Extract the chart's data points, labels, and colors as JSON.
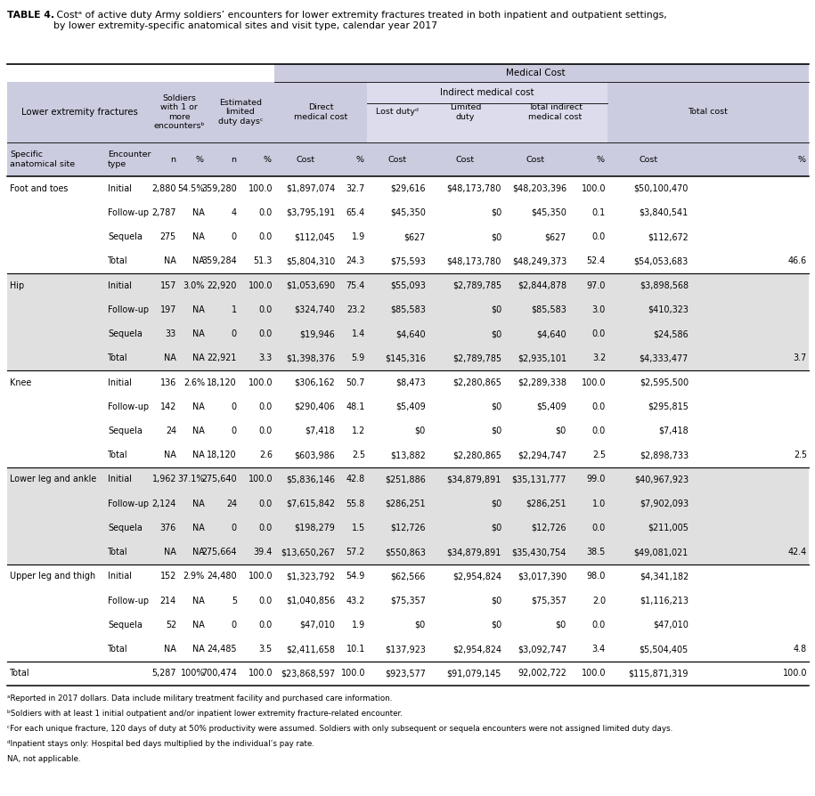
{
  "title_bold": "TABLE 4.",
  "title_rest": " Costᵃ of active duty Army soldiers’ encounters for lower extremity fractures treated in both inpatient and outpatient settings,\nby lower extremity-specific anatomical sites and visit type, calendar year 2017",
  "header_bg": "#cccce0",
  "indirect_bg": "#dcdcec",
  "alt_row_bg": "#e0e0e0",
  "white_bg": "#ffffff",
  "footnotes": [
    "ᵃReported in 2017 dollars. Data include military treatment facility and purchased care information.",
    "ᵇSoldiers with at least 1 initial outpatient and/or inpatient lower extremity fracture-related encounter.",
    "ᶜFor each unique fracture, 120 days of duty at 50% productivity were assumed. Soldiers with only subsequent or sequela encounters were not assigned limited duty days.",
    "ᵈInpatient stays only: Hospital bed days multiplied by the individual’s pay rate.",
    "NA, not applicable."
  ],
  "rows": [
    [
      "Foot and toes",
      "Initial",
      "2,880",
      "54.5%",
      "359,280",
      "100.0",
      "$1,897,074",
      "32.7",
      "$29,616",
      "$48,173,780",
      "$48,203,396",
      "100.0",
      "$50,100,470",
      ""
    ],
    [
      "",
      "Follow-up",
      "2,787",
      "NA",
      "4",
      "0.0",
      "$3,795,191",
      "65.4",
      "$45,350",
      "$0",
      "$45,350",
      "0.1",
      "$3,840,541",
      ""
    ],
    [
      "",
      "Sequela",
      "275",
      "NA",
      "0",
      "0.0",
      "$112,045",
      "1.9",
      "$627",
      "$0",
      "$627",
      "0.0",
      "$112,672",
      ""
    ],
    [
      "",
      "Total",
      "NA",
      "NA",
      "359,284",
      "51.3",
      "$5,804,310",
      "24.3",
      "$75,593",
      "$48,173,780",
      "$48,249,373",
      "52.4",
      "$54,053,683",
      "46.6"
    ],
    [
      "Hip",
      "Initial",
      "157",
      "3.0%",
      "22,920",
      "100.0",
      "$1,053,690",
      "75.4",
      "$55,093",
      "$2,789,785",
      "$2,844,878",
      "97.0",
      "$3,898,568",
      ""
    ],
    [
      "",
      "Follow-up",
      "197",
      "NA",
      "1",
      "0.0",
      "$324,740",
      "23.2",
      "$85,583",
      "$0",
      "$85,583",
      "3.0",
      "$410,323",
      ""
    ],
    [
      "",
      "Sequela",
      "33",
      "NA",
      "0",
      "0.0",
      "$19,946",
      "1.4",
      "$4,640",
      "$0",
      "$4,640",
      "0.0",
      "$24,586",
      ""
    ],
    [
      "",
      "Total",
      "NA",
      "NA",
      "22,921",
      "3.3",
      "$1,398,376",
      "5.9",
      "$145,316",
      "$2,789,785",
      "$2,935,101",
      "3.2",
      "$4,333,477",
      "3.7"
    ],
    [
      "Knee",
      "Initial",
      "136",
      "2.6%",
      "18,120",
      "100.0",
      "$306,162",
      "50.7",
      "$8,473",
      "$2,280,865",
      "$2,289,338",
      "100.0",
      "$2,595,500",
      ""
    ],
    [
      "",
      "Follow-up",
      "142",
      "NA",
      "0",
      "0.0",
      "$290,406",
      "48.1",
      "$5,409",
      "$0",
      "$5,409",
      "0.0",
      "$295,815",
      ""
    ],
    [
      "",
      "Sequela",
      "24",
      "NA",
      "0",
      "0.0",
      "$7,418",
      "1.2",
      "$0",
      "$0",
      "$0",
      "0.0",
      "$7,418",
      ""
    ],
    [
      "",
      "Total",
      "NA",
      "NA",
      "18,120",
      "2.6",
      "$603,986",
      "2.5",
      "$13,882",
      "$2,280,865",
      "$2,294,747",
      "2.5",
      "$2,898,733",
      "2.5"
    ],
    [
      "Lower leg and ankle",
      "Initial",
      "1,962",
      "37.1%",
      "275,640",
      "100.0",
      "$5,836,146",
      "42.8",
      "$251,886",
      "$34,879,891",
      "$35,131,777",
      "99.0",
      "$40,967,923",
      ""
    ],
    [
      "",
      "Follow-up",
      "2,124",
      "NA",
      "24",
      "0.0",
      "$7,615,842",
      "55.8",
      "$286,251",
      "$0",
      "$286,251",
      "1.0",
      "$7,902,093",
      ""
    ],
    [
      "",
      "Sequela",
      "376",
      "NA",
      "0",
      "0.0",
      "$198,279",
      "1.5",
      "$12,726",
      "$0",
      "$12,726",
      "0.0",
      "$211,005",
      ""
    ],
    [
      "",
      "Total",
      "NA",
      "NA",
      "275,664",
      "39.4",
      "$13,650,267",
      "57.2",
      "$550,863",
      "$34,879,891",
      "$35,430,754",
      "38.5",
      "$49,081,021",
      "42.4"
    ],
    [
      "Upper leg and thigh",
      "Initial",
      "152",
      "2.9%",
      "24,480",
      "100.0",
      "$1,323,792",
      "54.9",
      "$62,566",
      "$2,954,824",
      "$3,017,390",
      "98.0",
      "$4,341,182",
      ""
    ],
    [
      "",
      "Follow-up",
      "214",
      "NA",
      "5",
      "0.0",
      "$1,040,856",
      "43.2",
      "$75,357",
      "$0",
      "$75,357",
      "2.0",
      "$1,116,213",
      ""
    ],
    [
      "",
      "Sequela",
      "52",
      "NA",
      "0",
      "0.0",
      "$47,010",
      "1.9",
      "$0",
      "$0",
      "$0",
      "0.0",
      "$47,010",
      ""
    ],
    [
      "",
      "Total",
      "NA",
      "NA",
      "24,485",
      "3.5",
      "$2,411,658",
      "10.1",
      "$137,923",
      "$2,954,824",
      "$3,092,747",
      "3.4",
      "$5,504,405",
      "4.8"
    ],
    [
      "Total",
      "",
      "5,287",
      "100%",
      "700,474",
      "100.0",
      "$23,868,597",
      "100.0",
      "$923,577",
      "$91,079,145",
      "92,002,722",
      "100.0",
      "$115,871,319",
      "100.0"
    ]
  ],
  "section_starts": [
    0,
    4,
    8,
    12,
    16,
    20
  ],
  "total_rows": [
    3,
    7,
    11,
    15,
    19,
    20
  ]
}
